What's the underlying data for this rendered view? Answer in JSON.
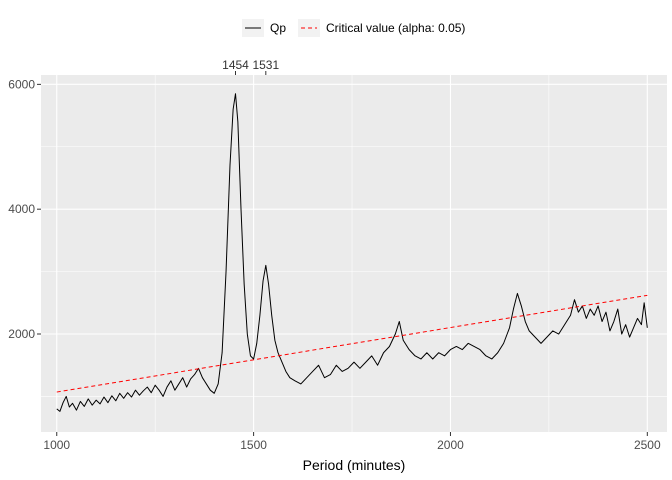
{
  "chart_data": {
    "type": "line",
    "title": "",
    "xlabel": "Period (minutes)",
    "ylabel": "",
    "xlim": [
      960,
      2550
    ],
    "ylim": [
      430,
      6150
    ],
    "x_ticks": [
      1000,
      1500,
      2000,
      2500
    ],
    "y_ticks": [
      2000,
      4000,
      6000
    ],
    "grid": true,
    "legend_position": "top",
    "peaks": [
      {
        "label": "1454",
        "x": 1454
      },
      {
        "label": "1531",
        "x": 1531
      }
    ],
    "series": [
      {
        "name": "Qp",
        "color": "#000000",
        "style": "solid",
        "points": [
          [
            1000,
            800
          ],
          [
            1008,
            760
          ],
          [
            1016,
            900
          ],
          [
            1024,
            1000
          ],
          [
            1032,
            830
          ],
          [
            1040,
            890
          ],
          [
            1050,
            780
          ],
          [
            1060,
            920
          ],
          [
            1070,
            840
          ],
          [
            1080,
            960
          ],
          [
            1090,
            860
          ],
          [
            1100,
            940
          ],
          [
            1110,
            880
          ],
          [
            1120,
            990
          ],
          [
            1130,
            900
          ],
          [
            1140,
            1010
          ],
          [
            1150,
            930
          ],
          [
            1160,
            1050
          ],
          [
            1170,
            970
          ],
          [
            1180,
            1060
          ],
          [
            1190,
            990
          ],
          [
            1200,
            1100
          ],
          [
            1210,
            1020
          ],
          [
            1220,
            1090
          ],
          [
            1230,
            1150
          ],
          [
            1240,
            1060
          ],
          [
            1250,
            1180
          ],
          [
            1260,
            1100
          ],
          [
            1270,
            1000
          ],
          [
            1280,
            1150
          ],
          [
            1290,
            1250
          ],
          [
            1300,
            1100
          ],
          [
            1310,
            1200
          ],
          [
            1320,
            1300
          ],
          [
            1330,
            1150
          ],
          [
            1340,
            1280
          ],
          [
            1350,
            1350
          ],
          [
            1360,
            1450
          ],
          [
            1370,
            1300
          ],
          [
            1380,
            1200
          ],
          [
            1390,
            1100
          ],
          [
            1400,
            1050
          ],
          [
            1410,
            1200
          ],
          [
            1420,
            1700
          ],
          [
            1430,
            3000
          ],
          [
            1440,
            4700
          ],
          [
            1448,
            5600
          ],
          [
            1454,
            5850
          ],
          [
            1460,
            5400
          ],
          [
            1468,
            4000
          ],
          [
            1476,
            2800
          ],
          [
            1484,
            2000
          ],
          [
            1492,
            1650
          ],
          [
            1500,
            1600
          ],
          [
            1508,
            1850
          ],
          [
            1516,
            2300
          ],
          [
            1524,
            2850
          ],
          [
            1531,
            3100
          ],
          [
            1538,
            2800
          ],
          [
            1546,
            2300
          ],
          [
            1554,
            1900
          ],
          [
            1562,
            1700
          ],
          [
            1572,
            1550
          ],
          [
            1582,
            1400
          ],
          [
            1592,
            1300
          ],
          [
            1605,
            1250
          ],
          [
            1620,
            1200
          ],
          [
            1635,
            1300
          ],
          [
            1650,
            1400
          ],
          [
            1665,
            1500
          ],
          [
            1680,
            1300
          ],
          [
            1695,
            1350
          ],
          [
            1710,
            1500
          ],
          [
            1725,
            1400
          ],
          [
            1740,
            1450
          ],
          [
            1755,
            1550
          ],
          [
            1770,
            1450
          ],
          [
            1785,
            1550
          ],
          [
            1800,
            1650
          ],
          [
            1815,
            1500
          ],
          [
            1830,
            1700
          ],
          [
            1845,
            1800
          ],
          [
            1860,
            2000
          ],
          [
            1870,
            2200
          ],
          [
            1880,
            1900
          ],
          [
            1895,
            1750
          ],
          [
            1910,
            1650
          ],
          [
            1925,
            1600
          ],
          [
            1940,
            1700
          ],
          [
            1955,
            1600
          ],
          [
            1970,
            1700
          ],
          [
            1985,
            1650
          ],
          [
            2000,
            1750
          ],
          [
            2015,
            1800
          ],
          [
            2030,
            1750
          ],
          [
            2045,
            1850
          ],
          [
            2060,
            1800
          ],
          [
            2075,
            1750
          ],
          [
            2090,
            1650
          ],
          [
            2105,
            1600
          ],
          [
            2120,
            1700
          ],
          [
            2135,
            1850
          ],
          [
            2150,
            2100
          ],
          [
            2160,
            2400
          ],
          [
            2170,
            2650
          ],
          [
            2180,
            2450
          ],
          [
            2190,
            2200
          ],
          [
            2200,
            2050
          ],
          [
            2215,
            1950
          ],
          [
            2230,
            1850
          ],
          [
            2245,
            1950
          ],
          [
            2260,
            2050
          ],
          [
            2275,
            2000
          ],
          [
            2290,
            2150
          ],
          [
            2305,
            2300
          ],
          [
            2315,
            2550
          ],
          [
            2325,
            2350
          ],
          [
            2335,
            2450
          ],
          [
            2345,
            2250
          ],
          [
            2355,
            2400
          ],
          [
            2365,
            2300
          ],
          [
            2375,
            2450
          ],
          [
            2385,
            2200
          ],
          [
            2395,
            2350
          ],
          [
            2405,
            2050
          ],
          [
            2415,
            2200
          ],
          [
            2425,
            2400
          ],
          [
            2435,
            2000
          ],
          [
            2445,
            2150
          ],
          [
            2455,
            1950
          ],
          [
            2465,
            2100
          ],
          [
            2475,
            2250
          ],
          [
            2485,
            2150
          ],
          [
            2492,
            2500
          ],
          [
            2500,
            2100
          ]
        ]
      },
      {
        "name": "Critical value (alpha: 0.05)",
        "color": "#ff0000",
        "style": "dashed",
        "points": [
          [
            1000,
            1070
          ],
          [
            2500,
            2620
          ]
        ]
      }
    ]
  }
}
